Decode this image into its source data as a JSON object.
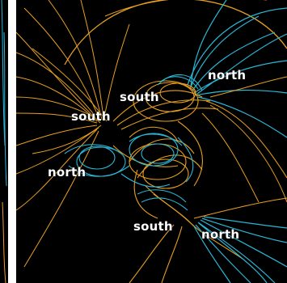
{
  "labels": {
    "north_top_right": "north",
    "south_upper_center": "south",
    "south_left": "south",
    "north_left": "north",
    "south_bottom": "south",
    "north_bottom_right": "north"
  },
  "colors": {
    "background": "#000000",
    "orange_field_lines": "#e8a020",
    "cyan_field_lines": "#2ab8d8",
    "label_text": "#ffffff",
    "page_gap": "#ffffff"
  }
}
